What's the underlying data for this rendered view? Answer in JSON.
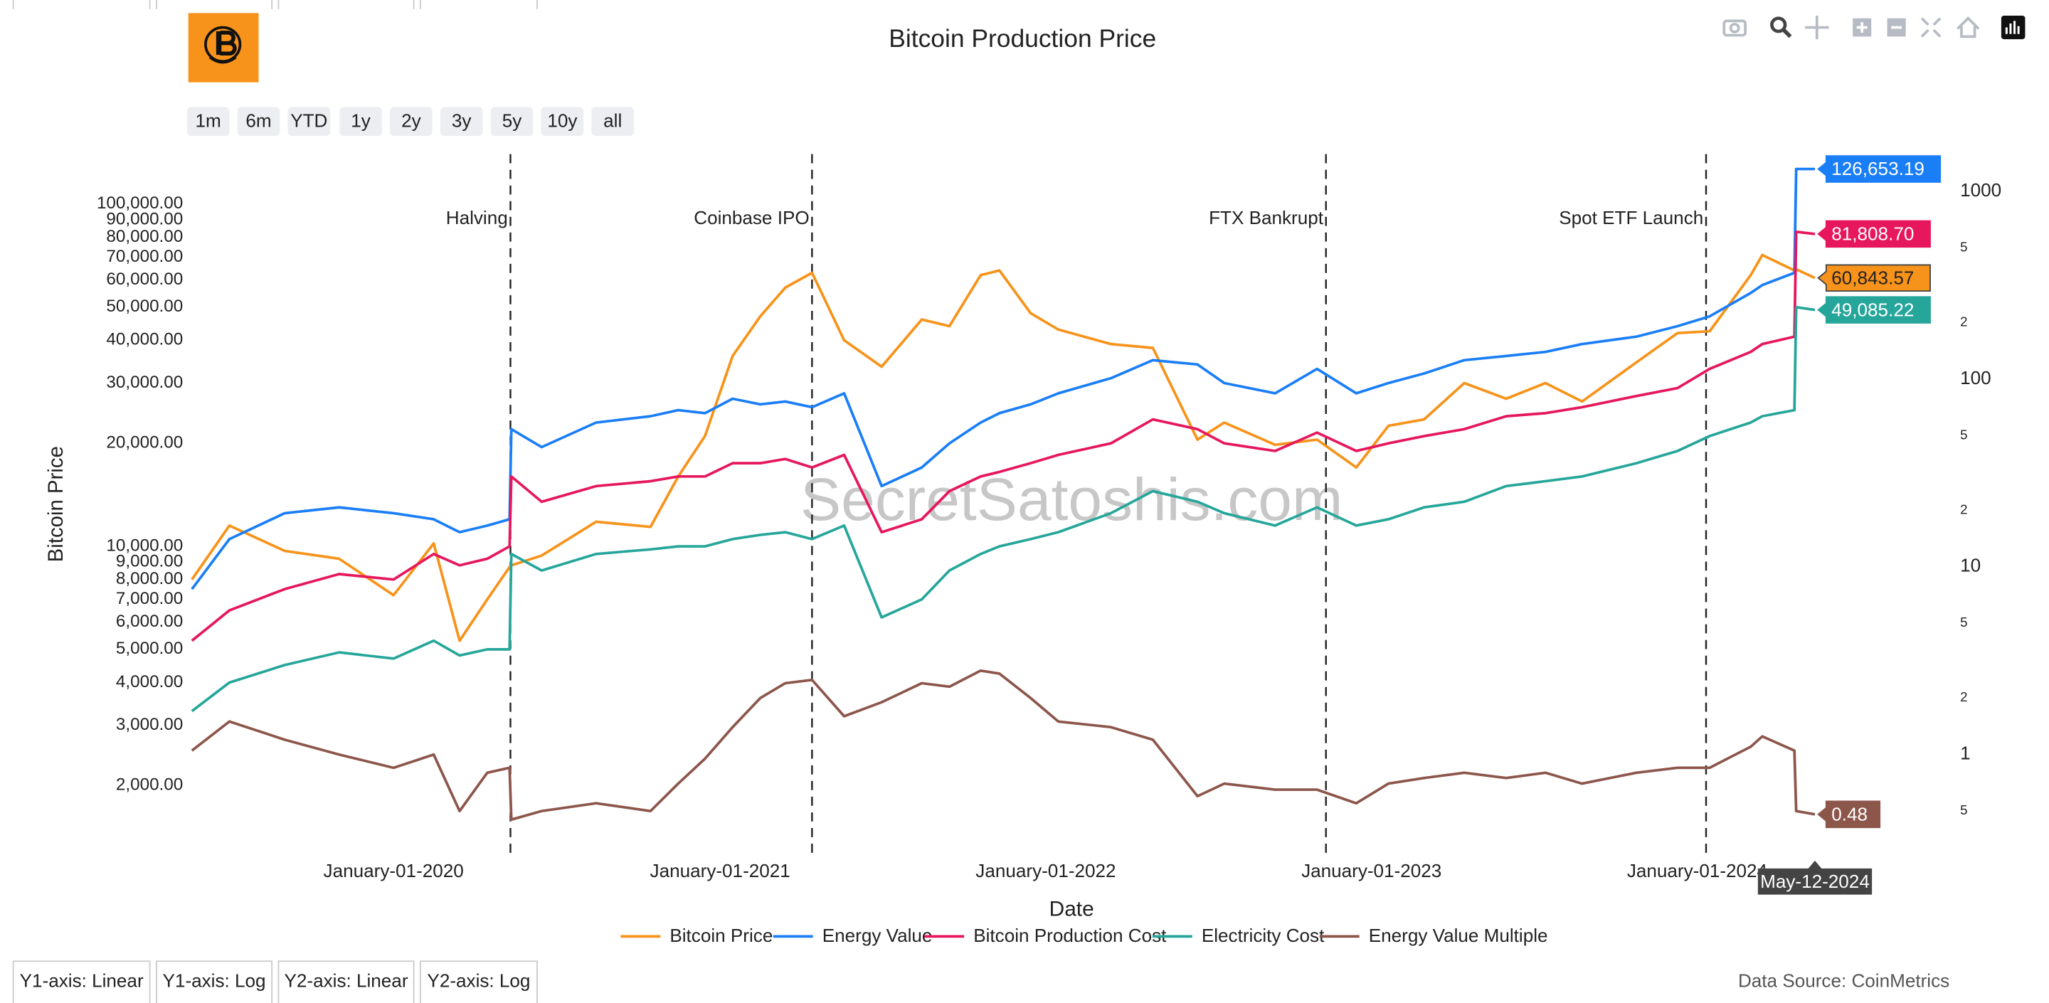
{
  "chart_data": {
    "type": "line",
    "title": "Bitcoin Production Price",
    "x_label": "Date",
    "y_label": "Bitcoin Price",
    "watermark": "SecretSatoshis.com",
    "data_source": "Data Source: CoinMetrics",
    "range_buttons": [
      "1m",
      "6m",
      "YTD",
      "1y",
      "2y",
      "3y",
      "5y",
      "10y",
      "all"
    ],
    "axis_buttons": [
      "Y1-axis: Linear",
      "Y1-axis: Log",
      "Y2-axis: Linear",
      "Y2-axis: Log"
    ],
    "log_y": true,
    "log_y2": true,
    "xlim": [
      "2019-05-13",
      "2024-09-25"
    ],
    "xticks": [
      {
        "value": "2020-01-01",
        "label": "January-01-2020"
      },
      {
        "value": "2021-01-01",
        "label": "January-01-2021"
      },
      {
        "value": "2022-01-01",
        "label": "January-01-2022"
      },
      {
        "value": "2023-01-01",
        "label": "January-01-2023"
      },
      {
        "value": "2024-01-01",
        "label": "January-01-2024"
      }
    ],
    "ylim": [
      1250,
      140000
    ],
    "yticks": [
      {
        "value": 2000,
        "label": "2,000.00"
      },
      {
        "value": 3000,
        "label": "3,000.00"
      },
      {
        "value": 4000,
        "label": "4,000.00"
      },
      {
        "value": 5000,
        "label": "5,000.00"
      },
      {
        "value": 6000,
        "label": "6,000.00"
      },
      {
        "value": 7000,
        "label": "7,000.00"
      },
      {
        "value": 8000,
        "label": "8,000.00"
      },
      {
        "value": 9000,
        "label": "9,000.00"
      },
      {
        "value": 10000,
        "label": "10,000.00"
      },
      {
        "value": 20000,
        "label": "20,000.00"
      },
      {
        "value": 30000,
        "label": "30,000.00"
      },
      {
        "value": 40000,
        "label": "40,000.00"
      },
      {
        "value": 50000,
        "label": "50,000.00"
      },
      {
        "value": 60000,
        "label": "60,000.00"
      },
      {
        "value": 70000,
        "label": "70,000.00"
      },
      {
        "value": 80000,
        "label": "80,000.00"
      },
      {
        "value": 90000,
        "label": "90,000.00"
      },
      {
        "value": 100000,
        "label": "100,000.00"
      }
    ],
    "y2lim": [
      0.29,
      1585
    ],
    "y2ticks": [
      {
        "value": 0.5,
        "label": "5"
      },
      1,
      {
        "value": 2,
        "label": "2"
      },
      {
        "value": 5,
        "label": "5"
      },
      10,
      {
        "value": 20,
        "label": "2"
      },
      {
        "value": 50,
        "label": "5"
      },
      100,
      {
        "value": 200,
        "label": "2"
      },
      {
        "value": 500,
        "label": "5"
      },
      1000
    ],
    "events": [
      {
        "date": "2020-05-11",
        "label": "Halving"
      },
      {
        "date": "2021-04-14",
        "label": "Coinbase IPO"
      },
      {
        "date": "2022-11-11",
        "label": "FTX Bankrupt"
      },
      {
        "date": "2024-01-11",
        "label": "Spot ETF Launch"
      }
    ],
    "hover_date": {
      "value": "2024-05-12",
      "label": "May-12-2024"
    },
    "x": [
      "2019-05-20",
      "2019-07-01",
      "2019-09-01",
      "2019-11-01",
      "2020-01-01",
      "2020-02-15",
      "2020-03-15",
      "2020-04-15",
      "2020-05-10",
      "2020-05-12",
      "2020-06-15",
      "2020-08-15",
      "2020-10-15",
      "2020-11-15",
      "2020-12-15",
      "2021-01-15",
      "2021-02-15",
      "2021-03-15",
      "2021-04-14",
      "2021-05-20",
      "2021-07-01",
      "2021-08-15",
      "2021-09-15",
      "2021-10-20",
      "2021-11-10",
      "2021-12-15",
      "2022-01-15",
      "2022-03-15",
      "2022-05-01",
      "2022-06-20",
      "2022-07-20",
      "2022-09-15",
      "2022-11-01",
      "2022-12-15",
      "2023-01-20",
      "2023-03-01",
      "2023-04-15",
      "2023-06-01",
      "2023-07-15",
      "2023-08-25",
      "2023-10-25",
      "2023-12-10",
      "2024-01-15",
      "2024-03-01",
      "2024-03-14",
      "2024-04-19",
      "2024-04-21",
      "2024-05-12"
    ],
    "series": [
      {
        "name": "Bitcoin Price",
        "color": "#f7931a",
        "end_label": "60,843.57",
        "values": [
          8000,
          11500,
          9700,
          9200,
          7200,
          10200,
          5300,
          7000,
          8700,
          8800,
          9400,
          11800,
          11400,
          16000,
          21000,
          36000,
          47000,
          57000,
          63000,
          40000,
          33500,
          46000,
          44000,
          62000,
          64000,
          48000,
          43000,
          39000,
          38000,
          20500,
          23000,
          19800,
          20500,
          17000,
          22500,
          23500,
          30000,
          27000,
          30000,
          26500,
          34500,
          42000,
          42500,
          62000,
          71000,
          64000,
          64500,
          60843.57
        ]
      },
      {
        "name": "Energy Value",
        "color": "#1a7ef7",
        "end_label": "126,653.19",
        "values": [
          7500,
          10500,
          12500,
          13000,
          12500,
          12000,
          11000,
          11500,
          12000,
          22000,
          19500,
          23000,
          24000,
          25000,
          24500,
          27000,
          26000,
          26500,
          25500,
          28000,
          15000,
          17000,
          20000,
          23000,
          24500,
          26000,
          28000,
          31000,
          35000,
          34000,
          30000,
          28000,
          33000,
          28000,
          30000,
          32000,
          35000,
          36000,
          37000,
          39000,
          41000,
          44000,
          47000,
          55000,
          58000,
          63000,
          126653.19,
          126653.19
        ]
      },
      {
        "name": "Bitcoin Production Cost",
        "color": "#e6175c",
        "end_label": "81,808.70",
        "values": [
          5300,
          6500,
          7500,
          8300,
          8000,
          9500,
          8800,
          9200,
          10000,
          16000,
          13500,
          15000,
          15500,
          16000,
          16000,
          17500,
          17500,
          18000,
          17000,
          18500,
          11000,
          12000,
          14500,
          16000,
          16500,
          17500,
          18500,
          20000,
          23500,
          22000,
          20000,
          19000,
          21500,
          19000,
          20000,
          21000,
          22000,
          24000,
          24500,
          25500,
          27500,
          29000,
          33000,
          37000,
          39000,
          41000,
          83000,
          81808.7
        ]
      },
      {
        "name": "Electricity Cost",
        "color": "#26a69a",
        "end_label": "49,085.22",
        "values": [
          3300,
          4000,
          4500,
          4900,
          4700,
          5300,
          4800,
          5000,
          5000,
          9500,
          8500,
          9500,
          9800,
          10000,
          10000,
          10500,
          10800,
          11000,
          10500,
          11500,
          6200,
          7000,
          8500,
          9500,
          10000,
          10500,
          11000,
          12500,
          14500,
          13500,
          12500,
          11500,
          13000,
          11500,
          12000,
          13000,
          13500,
          15000,
          15500,
          16000,
          17500,
          19000,
          21000,
          23000,
          24000,
          25000,
          50000,
          49085.22
        ]
      },
      {
        "name": "Energy Value Multiple",
        "color": "#8c564b",
        "axis": "y2",
        "end_label": "0.48",
        "values": [
          1.05,
          1.5,
          1.2,
          1.0,
          0.85,
          1.0,
          0.5,
          0.8,
          0.85,
          0.45,
          0.5,
          0.55,
          0.5,
          0.7,
          0.95,
          1.4,
          2.0,
          2.4,
          2.5,
          1.6,
          1.9,
          2.4,
          2.3,
          2.8,
          2.7,
          2.0,
          1.5,
          1.4,
          1.2,
          0.6,
          0.7,
          0.65,
          0.65,
          0.55,
          0.7,
          0.75,
          0.8,
          0.75,
          0.8,
          0.7,
          0.8,
          0.85,
          0.85,
          1.1,
          1.25,
          1.05,
          0.5,
          0.48
        ]
      }
    ]
  }
}
